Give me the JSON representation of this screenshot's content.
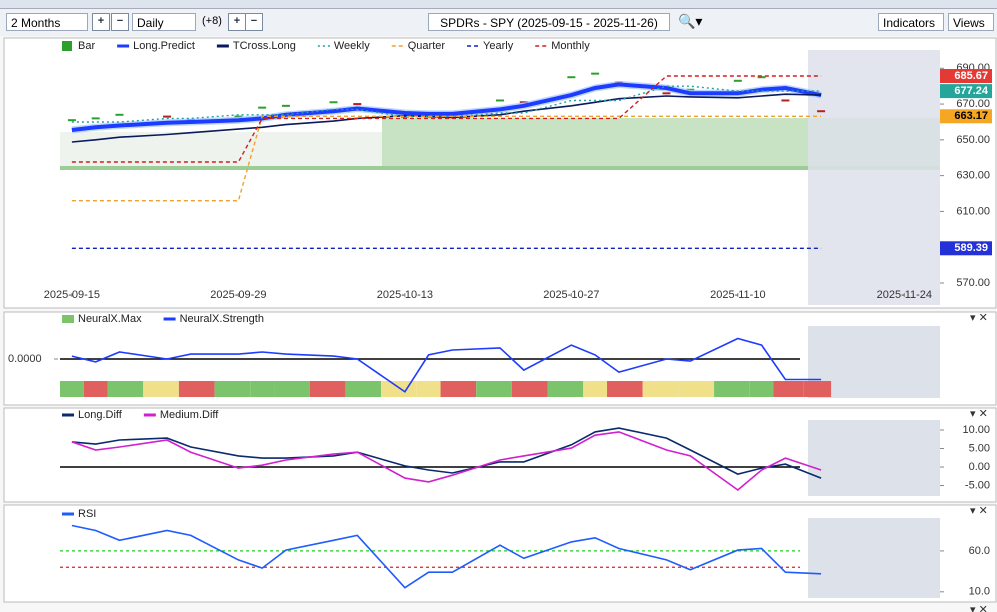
{
  "toolbar": {
    "period": "2 Months",
    "interval": "Daily",
    "extra": "(+8)",
    "title": "SPDRs - SPY (2025-09-15 - 2025-11-26)",
    "indicators": "Indicators",
    "views": "Views"
  },
  "chart_data": [
    {
      "type": "line",
      "x": [
        "2025-09-15",
        "2025-09-17",
        "2025-09-19",
        "2025-09-23",
        "2025-09-25",
        "2025-09-29",
        "2025-10-01",
        "2025-10-03",
        "2025-10-07",
        "2025-10-09",
        "2025-10-13",
        "2025-10-15",
        "2025-10-17",
        "2025-10-21",
        "2025-10-23",
        "2025-10-27",
        "2025-10-29",
        "2025-10-31",
        "2025-11-04",
        "2025-11-06",
        "2025-11-10",
        "2025-11-12",
        "2025-11-14",
        "2025-11-17"
      ],
      "xlim": [
        "2025-09-14",
        "2025-11-27"
      ],
      "xticks": [
        "2025-09-15",
        "2025-09-29",
        "2025-10-13",
        "2025-10-27",
        "2025-11-10",
        "2025-11-24"
      ],
      "ylim": [
        557.7,
        705.8
      ],
      "yticks": [
        {
          "value": 690,
          "label": "690.00"
        },
        {
          "value": 670,
          "label": "670.00"
        },
        {
          "value": 650,
          "label": "650.00"
        },
        {
          "value": 630,
          "label": "630.00"
        },
        {
          "value": 610,
          "label": "610.00"
        },
        {
          "value": 570,
          "label": "570.00"
        }
      ],
      "series": [
        {
          "name": "Bar",
          "style": "ticks",
          "color": "#2ca02c",
          "down_color": "#b22222",
          "values": [
            661,
            662,
            664,
            663,
            661,
            663,
            668,
            669,
            671,
            670,
            663,
            665,
            664,
            672,
            671,
            685,
            687,
            682,
            676,
            678,
            683,
            685,
            672,
            666
          ]
        },
        {
          "name": "Long.Predict",
          "style": "thick",
          "color": "#1e3cff",
          "values": [
            655.5,
            657,
            658,
            659.5,
            660,
            661,
            662,
            664,
            666,
            667.5,
            665,
            664.5,
            664.5,
            667,
            669,
            675,
            679,
            681,
            679,
            676,
            676,
            678,
            679,
            675
          ]
        },
        {
          "name": "TCross.Long",
          "style": "solid",
          "color": "#0a1a5c",
          "values": [
            648.8,
            650,
            651.5,
            653,
            654,
            656,
            657,
            658.5,
            660.5,
            662,
            663.5,
            663,
            662.5,
            664,
            666,
            669,
            671,
            673,
            674.5,
            674,
            673.5,
            674.5,
            675.5,
            675
          ]
        },
        {
          "name": "Weekly",
          "style": "dotted",
          "color": "#20a0a0",
          "values": [
            660,
            660,
            660,
            662,
            662,
            664,
            664,
            664,
            667,
            667,
            663,
            663,
            663,
            665,
            665,
            672,
            672,
            672,
            680,
            680,
            677.24,
            677.24,
            677.24,
            677.24
          ]
        },
        {
          "name": "Quarter",
          "style": "dashed",
          "color": "#f0a030",
          "values": [
            616,
            616,
            616,
            616,
            616,
            616,
            663.17,
            663.17,
            663.17,
            663.17,
            663.17,
            663.17,
            663.17,
            663.17,
            663.17,
            663.17,
            663.17,
            663.17,
            663.17,
            663.17,
            663.17,
            663.17,
            663.17,
            663.17
          ]
        },
        {
          "name": "Yearly",
          "style": "dashed",
          "color": "#1020c0",
          "values": [
            589.39,
            589.39,
            589.39,
            589.39,
            589.39,
            589.39,
            589.39,
            589.39,
            589.39,
            589.39,
            589.39,
            589.39,
            589.39,
            589.39,
            589.39,
            589.39,
            589.39,
            589.39,
            589.39,
            589.39,
            589.39,
            589.39,
            589.39,
            589.39
          ]
        },
        {
          "name": "Monthly",
          "style": "dashed",
          "color": "#d02020",
          "values": [
            637.6,
            637.6,
            637.6,
            637.6,
            637.6,
            637.6,
            662,
            662,
            662,
            662,
            662,
            662,
            662,
            662,
            662,
            662,
            662,
            662,
            685.67,
            685.67,
            685.67,
            685.67,
            685.67,
            685.67
          ]
        }
      ],
      "price_labels": [
        {
          "value": 685.67,
          "color": "#e53935"
        },
        {
          "value": 677.24,
          "color": "#26a69a"
        },
        {
          "value": 663.17,
          "color": "#f5a623"
        },
        {
          "value": 589.39,
          "color": "#2430d8"
        }
      ]
    },
    {
      "type": "line",
      "ylim": [
        -1,
        1
      ],
      "ytick_side": "left",
      "yticks": [
        {
          "value": 0,
          "label": "0.0000"
        }
      ],
      "levels": [
        {
          "value": 0,
          "color": "#000000"
        }
      ],
      "series": [
        {
          "name": "NeuralX.Max",
          "style": "cells",
          "colors": [
            "#7bc46b",
            "#e06060",
            "#7bc46b",
            "#f0e08a",
            "#e06060",
            "#7bc46b",
            "#7bc46b",
            "#7bc46b",
            "#e06060",
            "#7bc46b",
            "#f0e08a",
            "#f0e08a",
            "#e06060",
            "#7bc46b",
            "#e06060",
            "#7bc46b",
            "#f0e08a",
            "#e06060",
            "#f0e08a",
            "#f0e08a",
            "#7bc46b",
            "#7bc46b",
            "#e06060",
            "#e06060"
          ]
        },
        {
          "name": "NeuralX.Strength",
          "style": "solid",
          "color": "#1e3cff",
          "values": [
            0.07,
            -0.07,
            0.17,
            0,
            0.12,
            0.12,
            0.17,
            0.12,
            0.07,
            0,
            -0.8,
            0.1,
            0.22,
            0.27,
            -0.27,
            0.34,
            0.1,
            -0.32,
            0,
            -0.05,
            0.5,
            0.34,
            -0.5,
            -0.5
          ]
        }
      ]
    },
    {
      "type": "line",
      "ylim": [
        -8.9,
        15.4
      ],
      "yticks": [
        {
          "value": 10,
          "label": "10.00"
        },
        {
          "value": 5,
          "label": "5.00"
        },
        {
          "value": 0,
          "label": "0.00"
        },
        {
          "value": -5,
          "label": "-5.00"
        }
      ],
      "levels": [
        {
          "value": 0,
          "color": "#000000"
        }
      ],
      "series": [
        {
          "name": "Long.Diff",
          "style": "solid",
          "color": "#0a2a6c",
          "values": [
            6.8,
            6.2,
            7.3,
            7.8,
            5.4,
            3,
            2.4,
            2.4,
            3,
            4,
            0.3,
            -0.8,
            -1.6,
            1.4,
            1.4,
            6,
            9.5,
            10.5,
            7.8,
            4.6,
            -1.9,
            -0.3,
            0.8,
            -3
          ]
        },
        {
          "name": "Medium.Diff",
          "style": "solid",
          "color": "#d020d0",
          "values": [
            6.8,
            4.6,
            5.4,
            7.3,
            4,
            -0.3,
            0.5,
            1.9,
            3.5,
            4,
            -3,
            -4,
            -2.2,
            1.9,
            3,
            5.1,
            8.6,
            9.5,
            4.6,
            3,
            -6.2,
            -0.8,
            2.4,
            -0.8
          ]
        }
      ]
    },
    {
      "type": "line",
      "ylim": [
        0,
        110
      ],
      "yticks": [
        {
          "value": 60,
          "label": "60.0"
        },
        {
          "value": 10,
          "label": "10.0"
        }
      ],
      "levels": [
        {
          "value": 60,
          "color": "#22cc22"
        },
        {
          "value": 40,
          "color": "#dd2222"
        }
      ],
      "series": [
        {
          "name": "RSI",
          "style": "solid",
          "color": "#1e5cff",
          "values": [
            91,
            85,
            73,
            85,
            79,
            49,
            39,
            61,
            73,
            79,
            15,
            34,
            34,
            67,
            51,
            71,
            76,
            63,
            49,
            37,
            61,
            63,
            34,
            32
          ]
        }
      ]
    }
  ]
}
